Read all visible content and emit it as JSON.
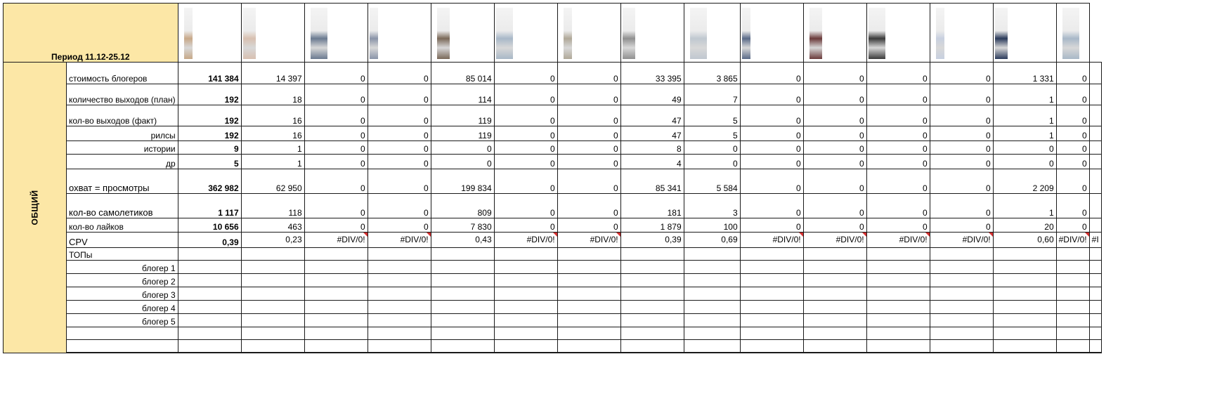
{
  "period_title": "Период 11.12-25.12",
  "section_title": "ОБЩИЙ",
  "rows": [
    {
      "key": "cost",
      "label": "стоимость блогеров",
      "total": "141 384",
      "values": [
        "14 397",
        "0",
        "0",
        "85 014",
        "0",
        "0",
        "33 395",
        "3 865",
        "0",
        "0",
        "0",
        "0",
        "1 331",
        "0"
      ]
    },
    {
      "key": "plan",
      "label": "количество выходов (план)",
      "total": "192",
      "values": [
        "18",
        "0",
        "0",
        "114",
        "0",
        "0",
        "49",
        "7",
        "0",
        "0",
        "0",
        "0",
        "1",
        "0"
      ]
    },
    {
      "key": "fact",
      "label": "кол-во выходов (факт)",
      "total": "192",
      "values": [
        "16",
        "0",
        "0",
        "119",
        "0",
        "0",
        "47",
        "5",
        "0",
        "0",
        "0",
        "0",
        "1",
        "0"
      ]
    },
    {
      "key": "reels",
      "label": "рилсы",
      "total": "192",
      "values": [
        "16",
        "0",
        "0",
        "119",
        "0",
        "0",
        "47",
        "5",
        "0",
        "0",
        "0",
        "0",
        "1",
        "0"
      ]
    },
    {
      "key": "stories",
      "label": "истории",
      "total": "9",
      "values": [
        "1",
        "0",
        "0",
        "0",
        "0",
        "0",
        "8",
        "0",
        "0",
        "0",
        "0",
        "0",
        "0",
        "0"
      ]
    },
    {
      "key": "other",
      "label": "др",
      "total": "5",
      "values": [
        "1",
        "0",
        "0",
        "0",
        "0",
        "0",
        "4",
        "0",
        "0",
        "0",
        "0",
        "0",
        "0",
        "0"
      ]
    },
    {
      "key": "reach",
      "label": "охват = просмотры",
      "total": "362 982",
      "values": [
        "62 950",
        "0",
        "0",
        "199 834",
        "0",
        "0",
        "85 341",
        "5 584",
        "0",
        "0",
        "0",
        "0",
        "2 209",
        "0"
      ]
    },
    {
      "key": "planes",
      "label": "кол-во самолетиков",
      "total": "1 117",
      "values": [
        "118",
        "0",
        "0",
        "809",
        "0",
        "0",
        "181",
        "3",
        "0",
        "0",
        "0",
        "0",
        "1",
        "0"
      ]
    },
    {
      "key": "likes",
      "label": "кол-во лайков",
      "total": "10 656",
      "values": [
        "463",
        "0",
        "0",
        "7 830",
        "0",
        "0",
        "1 879",
        "100",
        "0",
        "0",
        "0",
        "0",
        "20",
        "0"
      ]
    },
    {
      "key": "cpv",
      "label": "CPV",
      "total": "0,39",
      "values": [
        "0,23",
        "#DIV/0!",
        "#DIV/0!",
        "0,43",
        "#DIV/0!",
        "#DIV/0!",
        "0,39",
        "0,69",
        "#DIV/0!",
        "#DIV/0!",
        "#DIV/0!",
        "#DIV/0!",
        "0,60",
        "#DIV/0!"
      ],
      "last_partial": "#I"
    }
  ],
  "tops_label": "ТОПы",
  "bloggers": [
    "блогер 1",
    "блогер 2",
    "блогер 3",
    "блогер 4",
    "блогер 5"
  ],
  "thumb_colors": [
    "#c8a888",
    "#d8c0b0",
    "#6a7a90",
    "#8a94a8",
    "#7a6858",
    "#a8b8c8",
    "#b0a898",
    "#909090",
    "#c0c8d0",
    "#5a6a88",
    "#6a3a3a",
    "#3a3a3a",
    "#c8d0e0",
    "#2a3a5a",
    "#a8b8c8"
  ]
}
